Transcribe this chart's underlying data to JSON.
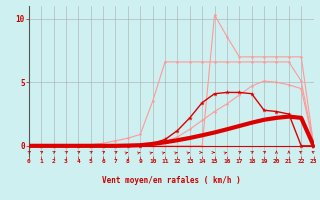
{
  "xlabel": "Vent moyen/en rafales ( km/h )",
  "xlim": [
    0,
    23
  ],
  "ylim": [
    -0.8,
    11
  ],
  "yticks": [
    0,
    5,
    10
  ],
  "xticks": [
    0,
    1,
    2,
    3,
    4,
    5,
    6,
    7,
    8,
    9,
    10,
    11,
    12,
    13,
    14,
    15,
    16,
    17,
    18,
    19,
    20,
    21,
    22,
    23
  ],
  "bg_color": "#cff0f0",
  "grid_color": "#aaaaaa",
  "series": [
    {
      "name": "light_flat",
      "x": [
        0,
        1,
        2,
        3,
        4,
        5,
        6,
        7,
        8,
        9,
        10,
        11,
        12,
        13,
        14,
        15,
        16,
        17,
        18,
        19,
        20,
        21,
        22,
        23
      ],
      "y": [
        0,
        0,
        0,
        0,
        0,
        0,
        0,
        0,
        0,
        0,
        0,
        0,
        0,
        0,
        0,
        10.3,
        8.6,
        7.0,
        7.0,
        7.0,
        7.0,
        7.0,
        7.0,
        0.1
      ],
      "color": "#ff9999",
      "lw": 0.8,
      "marker": "o",
      "ms": 1.8,
      "zorder": 2
    },
    {
      "name": "light_rise",
      "x": [
        0,
        1,
        2,
        3,
        4,
        5,
        6,
        7,
        8,
        9,
        10,
        11,
        12,
        13,
        14,
        15,
        16,
        17,
        18,
        19,
        20,
        21,
        22,
        23
      ],
      "y": [
        0,
        0,
        0,
        0,
        0,
        0.1,
        0.2,
        0.4,
        0.6,
        0.9,
        3.5,
        6.6,
        6.6,
        6.6,
        6.6,
        6.6,
        6.6,
        6.6,
        6.6,
        6.6,
        6.6,
        6.6,
        5.1,
        0.1
      ],
      "color": "#ff9999",
      "lw": 0.8,
      "marker": "o",
      "ms": 1.8,
      "zorder": 2
    },
    {
      "name": "light_diag",
      "x": [
        0,
        1,
        2,
        3,
        4,
        5,
        6,
        7,
        8,
        9,
        10,
        11,
        12,
        13,
        14,
        15,
        16,
        17,
        18,
        19,
        20,
        21,
        22,
        23
      ],
      "y": [
        0,
        0,
        0,
        0,
        0,
        0,
        0,
        0,
        0,
        0,
        0,
        0.3,
        0.7,
        1.3,
        2.0,
        2.7,
        3.3,
        4.0,
        4.7,
        5.1,
        5.0,
        4.8,
        4.5,
        0.1
      ],
      "color": "#ff9999",
      "lw": 0.8,
      "marker": "o",
      "ms": 1.8,
      "zorder": 2
    },
    {
      "name": "medium_zigzag",
      "x": [
        0,
        1,
        2,
        3,
        4,
        5,
        6,
        7,
        8,
        9,
        10,
        11,
        12,
        13,
        14,
        15,
        16,
        17,
        18,
        19,
        20,
        21,
        22,
        23
      ],
      "y": [
        0,
        0,
        0,
        0,
        0,
        0,
        0,
        0,
        0,
        0,
        0.2,
        0.5,
        1.2,
        2.2,
        3.4,
        4.1,
        4.2,
        4.2,
        4.1,
        2.8,
        2.7,
        2.5,
        0.0,
        0.0
      ],
      "color": "#dd0000",
      "lw": 1.0,
      "marker": "*",
      "ms": 3.5,
      "zorder": 3
    },
    {
      "name": "thick_smooth",
      "x": [
        0,
        1,
        2,
        3,
        4,
        5,
        6,
        7,
        8,
        9,
        10,
        11,
        12,
        13,
        14,
        15,
        16,
        17,
        18,
        19,
        20,
        21,
        22,
        23
      ],
      "y": [
        0,
        0,
        0,
        0,
        0,
        0,
        0,
        0,
        0.02,
        0.05,
        0.15,
        0.28,
        0.44,
        0.62,
        0.83,
        1.05,
        1.3,
        1.56,
        1.82,
        2.05,
        2.2,
        2.3,
        2.2,
        0
      ],
      "color": "#dd0000",
      "lw": 3.0,
      "marker": null,
      "ms": 0,
      "zorder": 4
    }
  ],
  "arrow_angles_deg": [
    225,
    225,
    225,
    225,
    225,
    225,
    225,
    225,
    200,
    200,
    200,
    200,
    200,
    200,
    180,
    180,
    200,
    225,
    225,
    225,
    270,
    270,
    315,
    315
  ]
}
